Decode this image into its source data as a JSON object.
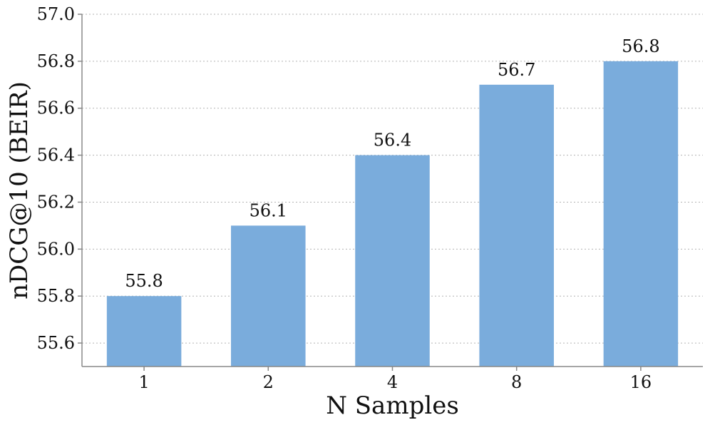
{
  "chart_data": {
    "type": "bar",
    "categories": [
      "1",
      "2",
      "4",
      "8",
      "16"
    ],
    "values": [
      55.8,
      56.1,
      56.4,
      56.7,
      56.8
    ],
    "data_labels": [
      "55.8",
      "56.1",
      "56.4",
      "56.7",
      "56.8"
    ],
    "xlabel": "N Samples",
    "ylabel": "nDCG@10 (BEIR)",
    "ylim": [
      55.5,
      57.0
    ],
    "yticks": [
      55.6,
      55.8,
      56.0,
      56.2,
      56.4,
      56.6,
      56.8,
      57.0
    ],
    "ytick_labels": [
      "55.6",
      "55.8",
      "56.0",
      "56.2",
      "56.4",
      "56.6",
      "56.8",
      "57.0"
    ],
    "grid": "horizontal, dotted",
    "legend": "none",
    "bar_color": "#7aacdc",
    "grid_color": "#b3b3b3",
    "axis_color": "#888888"
  }
}
